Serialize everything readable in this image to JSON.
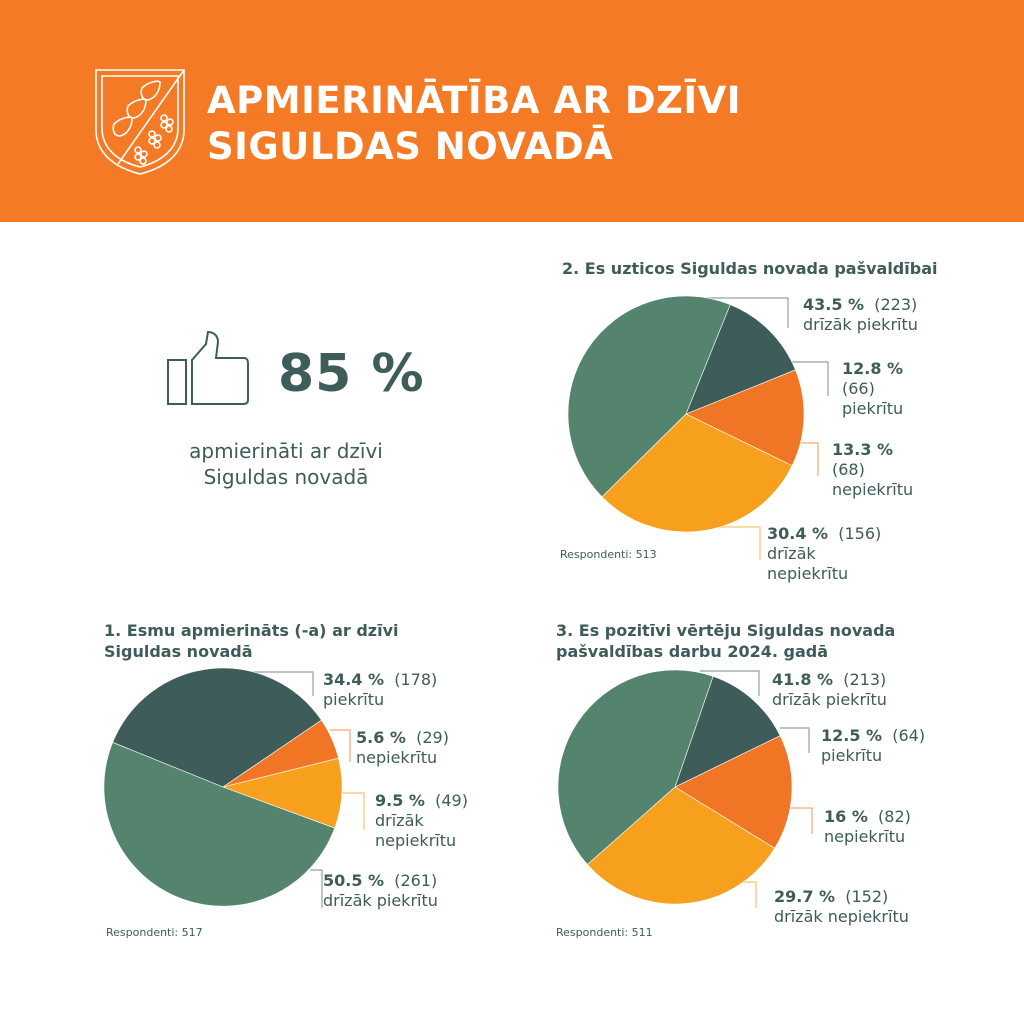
{
  "header": {
    "title_line1": "APMIERINĀTĪBA AR DZĪVI",
    "title_line2": "SIGULDAS NOVADĀ",
    "logo_icon": "sigulda-coat-of-arms-icon",
    "background_color": "#f47a26"
  },
  "kpi": {
    "icon": "thumbs-up-icon",
    "value": "85 %",
    "caption_line1": "apmierināti ar dzīvi",
    "caption_line2": "Siguldas novadā"
  },
  "colors": {
    "piekritu": "#3e5c59",
    "nepiekritu": "#f07525",
    "drizak_nepiekritu": "#f6a01e",
    "drizak_piekritu": "#55846e",
    "text": "#3e5c59"
  },
  "chart_data": [
    {
      "type": "pie",
      "title": "1. Esmu apmierināts (-a) ar dzīvi Siguldas novadā",
      "title_line1": "1. Esmu apmierināts (-a) ar dzīvi",
      "title_line2": "Siguldas novadā",
      "respondents_label": "Respondenti: 517",
      "start_angle_deg": -68,
      "slices": [
        {
          "key": "piekritu",
          "label": "piekrītu",
          "percent": 34.4,
          "percent_label": "34.4 %",
          "count": 178,
          "count_label": "(178)",
          "color": "#3e5c59"
        },
        {
          "key": "nepiekritu",
          "label": "nepiekrītu",
          "percent": 5.6,
          "percent_label": "5.6 %",
          "count": 29,
          "count_label": "(29)",
          "color": "#f07525"
        },
        {
          "key": "drizak_nepiekritu",
          "label": "drīzāk nepiekrītu",
          "label_line1": "drīzāk",
          "label_line2": "nepiekrītu",
          "percent": 9.5,
          "percent_label": "9.5 %",
          "count": 49,
          "count_label": "(49)",
          "color": "#f6a01e"
        },
        {
          "key": "drizak_piekritu",
          "label": "drīzāk piekrītu",
          "percent": 50.5,
          "percent_label": "50.5 %",
          "count": 261,
          "count_label": "(261)",
          "color": "#55846e"
        }
      ]
    },
    {
      "type": "pie",
      "title": "2. Es uzticos Siguldas novada pašvaldībai",
      "respondents_label": "Respondenti: 513",
      "start_angle_deg": 22,
      "slices": [
        {
          "key": "piekritu",
          "label": "piekrītu",
          "percent": 12.8,
          "percent_label": "12.8 %",
          "count": 66,
          "count_label": "(66)",
          "color": "#3e5c59"
        },
        {
          "key": "nepiekritu",
          "label": "nepiekrītu",
          "percent": 13.3,
          "percent_label": "13.3 %",
          "count": 68,
          "count_label": "(68)",
          "color": "#f07525"
        },
        {
          "key": "drizak_nepiekritu",
          "label": "drīzāk nepiekrītu",
          "label_line1": "drīzāk",
          "label_line2": "nepiekrītu",
          "percent": 30.4,
          "percent_label": "30.4 %",
          "count": 156,
          "count_label": "(156)",
          "color": "#f6a01e"
        },
        {
          "key": "drizak_piekritu",
          "label": "drīzāk piekrītu",
          "percent": 43.5,
          "percent_label": "43.5 %",
          "count": 223,
          "count_label": "(223)",
          "color": "#55846e"
        }
      ]
    },
    {
      "type": "pie",
      "title": "3. Es pozitīvi vērtēju Siguldas novada pašvaldības darbu 2024. gadā",
      "title_line1": "3. Es pozitīvi vērtēju Siguldas novada",
      "title_line2": "pašvaldības darbu 2024. gadā",
      "respondents_label": "Respondenti: 511",
      "start_angle_deg": 19,
      "slices": [
        {
          "key": "piekritu",
          "label": "piekrītu",
          "percent": 12.5,
          "percent_label": "12.5 %",
          "count": 64,
          "count_label": "(64)",
          "color": "#3e5c59"
        },
        {
          "key": "nepiekritu",
          "label": "nepiekrītu",
          "percent": 16,
          "percent_label": "16 %",
          "count": 82,
          "count_label": "(82)",
          "color": "#f07525"
        },
        {
          "key": "drizak_nepiekritu",
          "label": "drīzāk nepiekrītu",
          "percent": 29.7,
          "percent_label": "29.7 %",
          "count": 152,
          "count_label": "(152)",
          "color": "#f6a01e"
        },
        {
          "key": "drizak_piekritu",
          "label": "drīzāk piekrītu",
          "percent": 41.8,
          "percent_label": "41.8 %",
          "count": 213,
          "count_label": "(213)",
          "color": "#55846e"
        }
      ]
    }
  ]
}
